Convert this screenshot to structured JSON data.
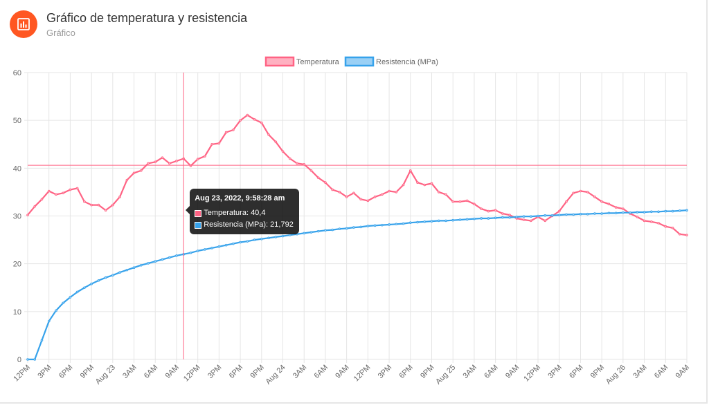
{
  "header": {
    "title": "Gráfico de temperatura y resistencia",
    "subtitle": "Gráfico",
    "icon": "bar-chart-icon",
    "icon_color": "#ff5722"
  },
  "chart_data": {
    "type": "line",
    "ylim": [
      0,
      60
    ],
    "yticks": [
      0,
      10,
      20,
      30,
      40,
      50,
      60
    ],
    "grid": true,
    "legend_position": "top",
    "x_tick_labels": [
      "12PM",
      "3PM",
      "6PM",
      "9PM",
      "Aug 23",
      "3AM",
      "6AM",
      "9AM",
      "12PM",
      "3PM",
      "6PM",
      "9PM",
      "Aug 24",
      "3AM",
      "6AM",
      "9AM",
      "12PM",
      "3PM",
      "6PM",
      "9PM",
      "Aug 25",
      "3AM",
      "6AM",
      "9AM",
      "12PM",
      "3PM",
      "6PM",
      "9PM",
      "Aug 26",
      "3AM",
      "6AM",
      "9AM"
    ],
    "x_axis_note": "Each tick is 3 hours apart, from 12PM Aug 22 to 9AM Aug 26",
    "series": [
      {
        "name": "Temperatura",
        "color": "#ff6384",
        "fill": "#ffb1c1",
        "x_hours": [
          0,
          1,
          2,
          3,
          4,
          5,
          6,
          7,
          8,
          9,
          10,
          11,
          12,
          13,
          14,
          15,
          16,
          17,
          18,
          19,
          20,
          21,
          22,
          23,
          24,
          25,
          26,
          27,
          28,
          29,
          30,
          31,
          32,
          33,
          34,
          35,
          36,
          37,
          38,
          39,
          40,
          41,
          42,
          43,
          44,
          45,
          46,
          47,
          48,
          49,
          50,
          51,
          52,
          53,
          54,
          55,
          56,
          57,
          58,
          59,
          60,
          61,
          62,
          63,
          64,
          65,
          66,
          67,
          68,
          69,
          70,
          71,
          72,
          73,
          74,
          75,
          76,
          77,
          78,
          79,
          80,
          81,
          82,
          83,
          84,
          85,
          86,
          87,
          88,
          89,
          90,
          91,
          92,
          93
        ],
        "values": [
          30.2,
          32.0,
          33.5,
          35.2,
          34.5,
          34.8,
          35.5,
          35.8,
          33.0,
          32.3,
          32.3,
          31.2,
          32.3,
          34.0,
          37.5,
          39.0,
          39.5,
          41.0,
          41.3,
          42.2,
          41.0,
          41.5,
          42.0,
          40.5,
          41.9,
          42.5,
          45.0,
          45.2,
          47.5,
          48.0,
          50.0,
          51.1,
          50.2,
          49.5,
          47.0,
          45.5,
          43.5,
          42.0,
          41.0,
          40.8,
          39.5,
          38.0,
          37.0,
          35.5,
          35.0,
          34.0,
          34.8,
          33.5,
          33.2,
          34.0,
          34.5,
          35.2,
          35.0,
          36.5,
          39.5,
          37.0,
          36.5,
          36.8,
          35.0,
          34.5,
          33.0,
          33.0,
          33.2,
          32.5,
          31.5,
          31.0,
          31.2,
          30.5,
          30.2,
          29.5,
          29.2,
          29.0,
          29.8,
          29.0,
          30.0,
          31.0,
          33.0,
          34.8,
          35.2,
          35.0,
          34.0,
          33.0,
          32.5,
          31.8,
          31.5,
          30.5,
          29.8,
          29.0,
          28.8,
          28.5,
          27.8,
          27.5,
          26.2,
          26.0
        ]
      },
      {
        "name": "Resistencia (MPa)",
        "color": "#36a2eb",
        "fill": "#9ad0f5",
        "x_hours": [
          0,
          1,
          2,
          3,
          4,
          5,
          6,
          7,
          8,
          9,
          10,
          11,
          12,
          13,
          14,
          15,
          16,
          17,
          18,
          19,
          20,
          21,
          22,
          23,
          24,
          25,
          26,
          27,
          28,
          29,
          30,
          31,
          32,
          33,
          34,
          35,
          36,
          37,
          38,
          39,
          40,
          41,
          42,
          43,
          44,
          45,
          46,
          47,
          48,
          49,
          50,
          51,
          52,
          53,
          54,
          55,
          56,
          57,
          58,
          59,
          60,
          61,
          62,
          63,
          64,
          65,
          66,
          67,
          68,
          69,
          70,
          71,
          72,
          73,
          74,
          75,
          76,
          77,
          78,
          79,
          80,
          81,
          82,
          83,
          84,
          85,
          86,
          87,
          88,
          89,
          90,
          91,
          92,
          93
        ],
        "values": [
          0.0,
          0.0,
          4.0,
          8.0,
          10.2,
          11.8,
          13.0,
          14.1,
          15.0,
          15.8,
          16.5,
          17.1,
          17.6,
          18.2,
          18.7,
          19.2,
          19.7,
          20.1,
          20.5,
          20.9,
          21.3,
          21.7,
          22.0,
          22.3,
          22.7,
          23.0,
          23.3,
          23.6,
          23.9,
          24.2,
          24.5,
          24.7,
          25.0,
          25.2,
          25.4,
          25.6,
          25.8,
          26.0,
          26.2,
          26.4,
          26.6,
          26.8,
          27.0,
          27.1,
          27.3,
          27.4,
          27.6,
          27.7,
          27.9,
          28.0,
          28.1,
          28.2,
          28.3,
          28.4,
          28.6,
          28.7,
          28.8,
          28.9,
          29.0,
          29.0,
          29.1,
          29.2,
          29.3,
          29.4,
          29.5,
          29.5,
          29.6,
          29.7,
          29.7,
          29.8,
          29.9,
          29.9,
          30.0,
          30.1,
          30.1,
          30.2,
          30.3,
          30.3,
          30.4,
          30.4,
          30.5,
          30.5,
          30.6,
          30.6,
          30.7,
          30.7,
          30.8,
          30.8,
          30.9,
          30.9,
          31.0,
          31.0,
          31.1,
          31.2
        ]
      }
    ],
    "crosshair": {
      "x_hours": 22.0,
      "y_value": 40.6
    },
    "tooltip": {
      "title": "Aug 23, 2022, 9:58:28 am",
      "rows": [
        {
          "label": "Temperatura: 40,4",
          "color": "#ff6384",
          "fill": "#ffb1c1"
        },
        {
          "label": "Resistencia (MPa): 21,792",
          "color": "#36a2eb",
          "fill": "#9ad0f5"
        }
      ]
    },
    "crosshair_color": "#ff6384"
  }
}
